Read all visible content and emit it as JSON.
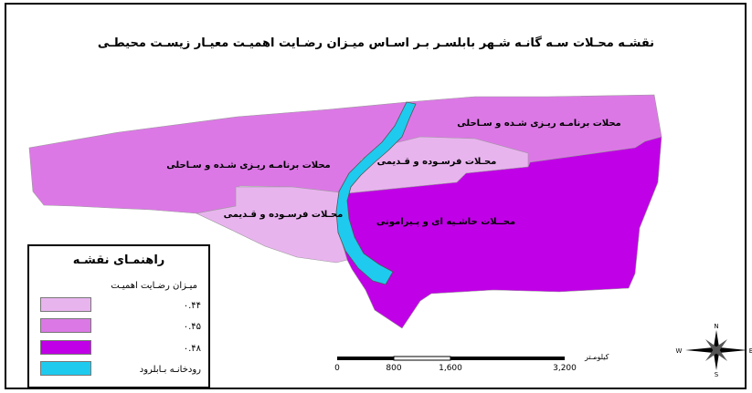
{
  "map": {
    "title": "نقشـه محـلات سـه گانـه شـهر بابلسـر  بـر اسـاس میـزان رضـایت اهمیـت معیـار زیسـت محیطـی",
    "regions": [
      {
        "label": "محلات برنامـه ریـزی شـده و سـاحلی",
        "color": "#dc78e6"
      },
      {
        "label": "محلات برنامـه ریـزی شـده و سـاحلی",
        "color": "#dc78e6"
      },
      {
        "label": "محـلات فرسـوده و قـدیمی",
        "color": "#e8b4ee"
      },
      {
        "label": "محـلات فرسـوده و قـدیمی",
        "color": "#e8b4ee"
      },
      {
        "label": "محــلات حاشـیه ای و پـیرامونی",
        "color": "#c000e6"
      }
    ],
    "river_color": "#1ecbee"
  },
  "legend": {
    "title": "راهنمـای نقشـه",
    "subtitle": "میـزان رضـایت اهمیـت",
    "items": [
      {
        "label": "۰.۴۴",
        "color": "#e8b4ee"
      },
      {
        "label": "۰.۴۵",
        "color": "#dc78e6"
      },
      {
        "label": "۰.۴۸",
        "color": "#c000e6"
      },
      {
        "label": "رودخانـه بـابلرود",
        "color": "#1ecbee"
      }
    ]
  },
  "scale_bar": {
    "unit": "کیلومـتر",
    "ticks": [
      "0",
      "800",
      "1,600",
      "3,200"
    ]
  },
  "compass": {
    "n": "N",
    "s": "S",
    "e": "E",
    "w": "W"
  }
}
